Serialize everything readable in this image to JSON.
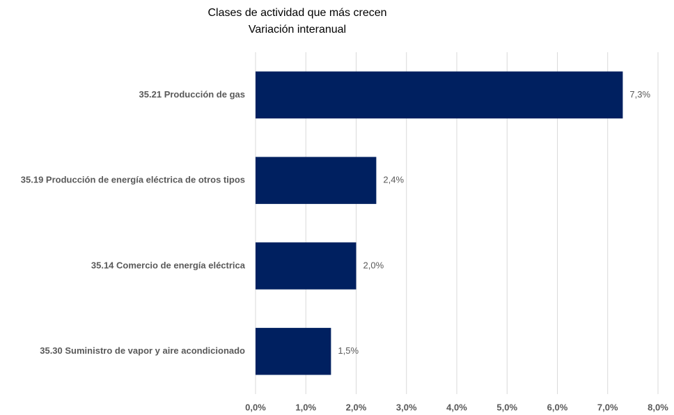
{
  "chart_data": {
    "type": "bar",
    "orientation": "horizontal",
    "title": "Clases de actividad que más crecen",
    "subtitle": "Variación interanual",
    "categories": [
      "35.21 Producción de gas",
      "35.19 Producción de energía eléctrica de otros tipos",
      "35.14 Comercio de energía eléctrica",
      "35.30 Suministro de vapor y aire acondicionado"
    ],
    "values": [
      7.3,
      2.4,
      2.0,
      1.5
    ],
    "value_labels": [
      "7,3%",
      "2,4%",
      "2,0%",
      "1,5%"
    ],
    "color": "#002060",
    "xlim": [
      0,
      8
    ],
    "xticks": [
      {
        "value": 0,
        "label": "0,0%"
      },
      {
        "value": 1,
        "label": "1,0%"
      },
      {
        "value": 2,
        "label": "2,0%"
      },
      {
        "value": 3,
        "label": "3,0%"
      },
      {
        "value": 4,
        "label": "4,0%"
      },
      {
        "value": 5,
        "label": "5,0%"
      },
      {
        "value": 6,
        "label": "6,0%"
      },
      {
        "value": 7,
        "label": "7,0%"
      },
      {
        "value": 8,
        "label": "8,0%"
      }
    ],
    "grid": true
  }
}
